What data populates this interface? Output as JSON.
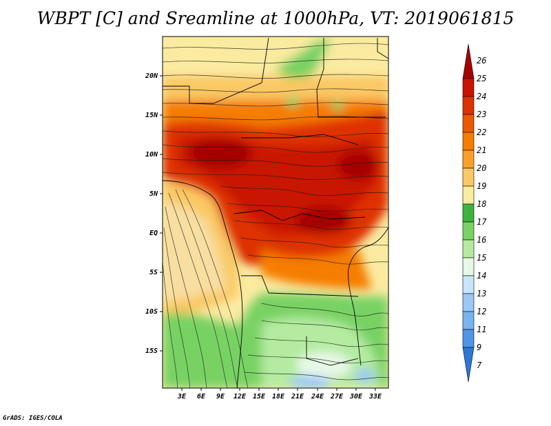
{
  "title": "WBPT [C] and Sreamline at 1000hPa, VT: 2019061815",
  "credit": "GrADS: IGES/COLA",
  "lat_labels": [
    "20N",
    "15N",
    "10N",
    "5N",
    "EQ",
    "5S",
    "10S",
    "15S"
  ],
  "lon_labels": [
    "3E",
    "6E",
    "9E",
    "12E",
    "15E",
    "18E",
    "21E",
    "24E",
    "27E",
    "30E",
    "33E"
  ],
  "colorbar": {
    "levels": [
      "26",
      "25",
      "24",
      "23",
      "22",
      "21",
      "20",
      "19",
      "18",
      "17",
      "16",
      "15",
      "14",
      "13",
      "12",
      "11",
      "9",
      "7"
    ],
    "colors": [
      "#a50000",
      "#c81400",
      "#de3200",
      "#eb5a00",
      "#f57d00",
      "#faa028",
      "#fac864",
      "#faeba0",
      "#3cb43c",
      "#78d264",
      "#b4eba0",
      "#e6f8e6",
      "#c8e6fa",
      "#9bc8f5",
      "#78b4f0",
      "#5096e6",
      "#2d78d7"
    ]
  },
  "fields": {
    "warm_ocean": "#f8dea0",
    "hot": "#cc2000",
    "cool": "#80d470"
  }
}
